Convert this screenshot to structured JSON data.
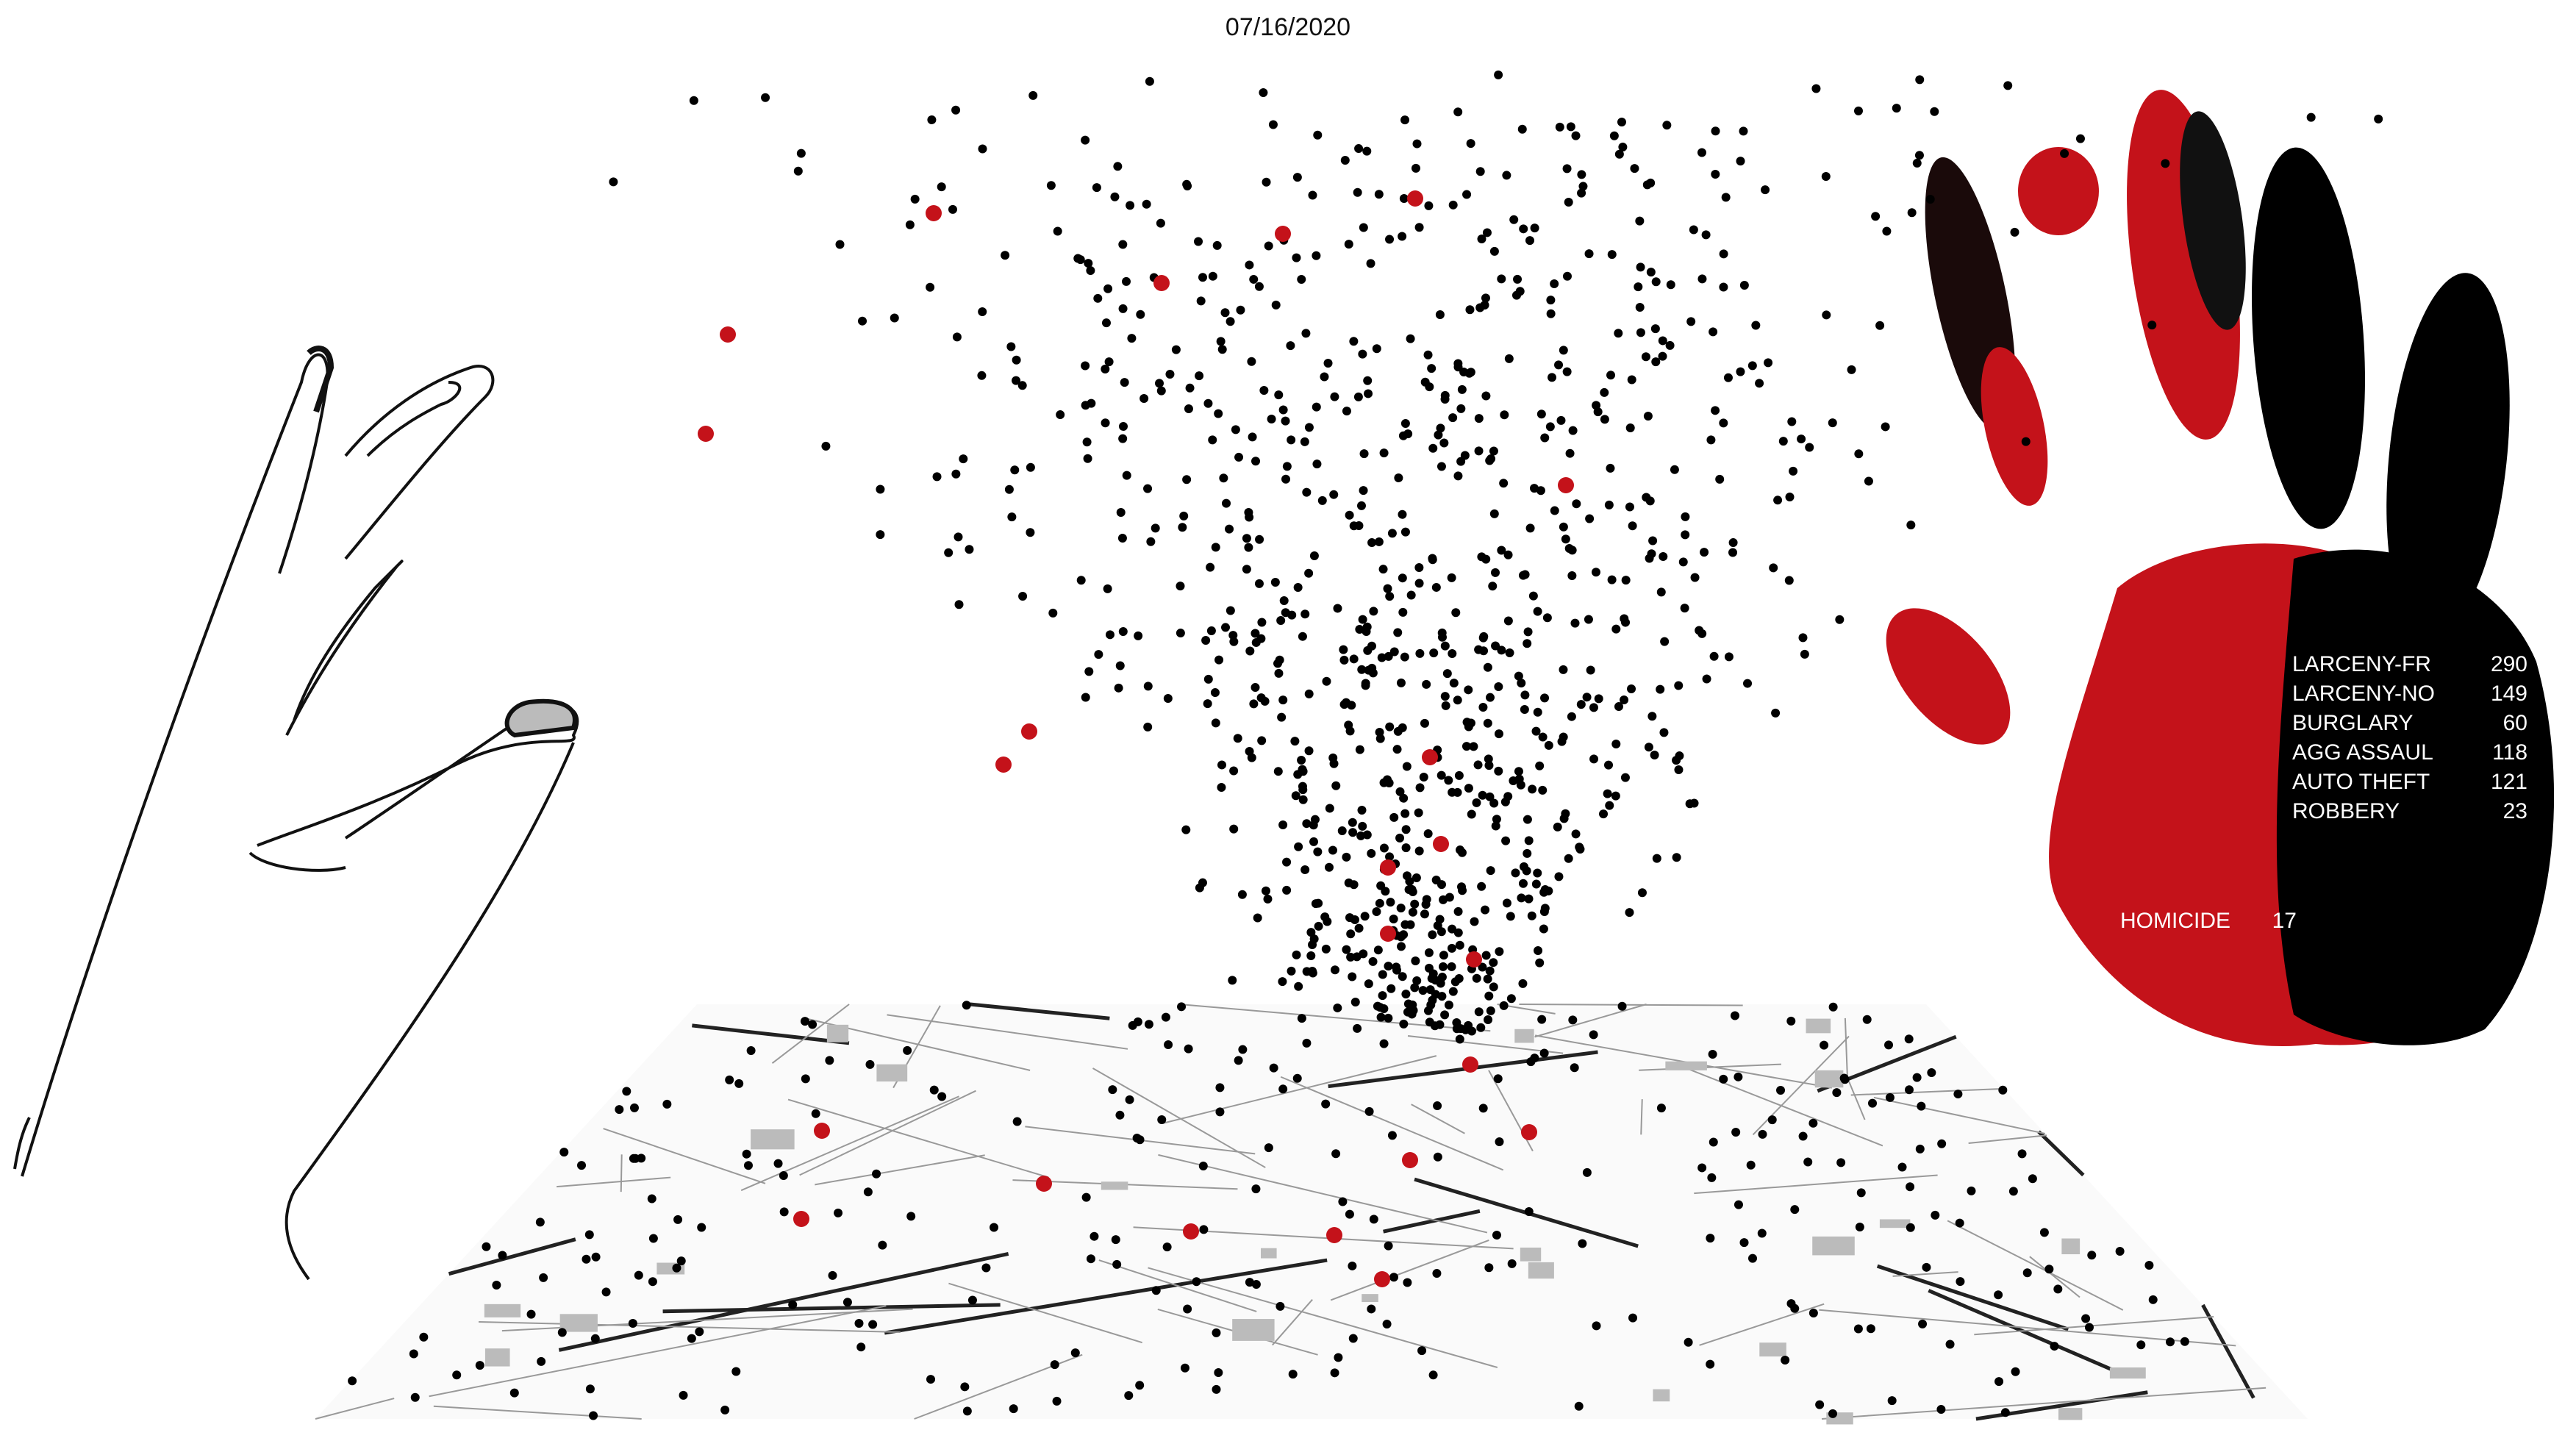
{
  "date": "07/16/2020",
  "colors": {
    "violent": "#c4121a",
    "nonviolent": "#000000",
    "map_lines": "#555555"
  },
  "legend": [
    {
      "label": "LARCENY-FR",
      "count": "290"
    },
    {
      "label": "LARCENY-NO",
      "count": "149"
    },
    {
      "label": "BURGLARY",
      "count": "60"
    },
    {
      "label": "AGG ASSAUL",
      "count": "118"
    },
    {
      "label": "AUTO THEFT",
      "count": "121"
    },
    {
      "label": "ROBBERY",
      "count": "23"
    }
  ],
  "homicide": {
    "label": "HOMICIDE",
    "count": "17"
  }
}
